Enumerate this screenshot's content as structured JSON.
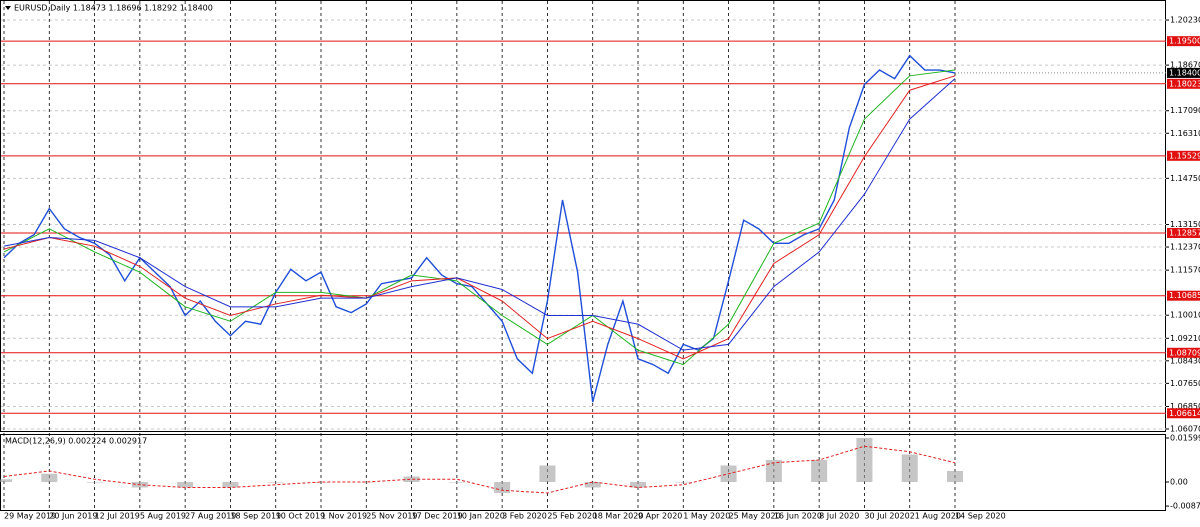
{
  "chart_data": [
    {
      "type": "price",
      "title": "EURUSD,Daily  1.18473 1.18696 1.18292 1.18400",
      "categories": [
        "29 May 2019",
        "20 Jun 2019",
        "12 Jul 2019",
        "5 Aug 2019",
        "27 Aug 2019",
        "18 Sep 2019",
        "10 Oct 2019",
        "1 Nov 2019",
        "25 Nov 2019",
        "17 Dec 2019",
        "10 Jan 2020",
        "3 Feb 2020",
        "25 Feb 2020",
        "18 Mar 2020",
        "9 Apr 2020",
        "1 May 2020",
        "25 May 2020",
        "16 Jun 2020",
        "8 Jul 2020",
        "30 Jul 2020",
        "21 Aug 2020",
        "14 Sep 2020"
      ],
      "price": {
        "color": "#1f4fd8",
        "values": [
          1.12,
          1.125,
          1.128,
          1.137,
          1.13,
          1.127,
          1.125,
          1.121,
          1.112,
          1.12,
          1.115,
          1.11,
          1.1,
          1.105,
          1.098,
          1.093,
          1.098,
          1.097,
          1.108,
          1.116,
          1.112,
          1.115,
          1.103,
          1.101,
          1.104,
          1.111,
          1.112,
          1.113,
          1.12,
          1.114,
          1.111,
          1.11,
          1.104,
          1.098,
          1.085,
          1.08,
          1.105,
          1.14,
          1.115,
          1.07,
          1.09,
          1.105,
          1.085,
          1.083,
          1.08,
          1.09,
          1.088,
          1.092,
          1.112,
          1.133,
          1.13,
          1.125,
          1.125,
          1.128,
          1.13,
          1.14,
          1.165,
          1.18,
          1.185,
          1.182,
          1.19,
          1.185,
          1.185,
          1.184
        ]
      },
      "series": [
        {
          "color": "#22b422",
          "values": [
            1.122,
            1.13,
            1.122,
            1.115,
            1.103,
            1.098,
            1.108,
            1.108,
            1.106,
            1.114,
            1.112,
            1.1,
            1.09,
            1.1,
            1.088,
            1.083,
            1.097,
            1.125,
            1.132,
            1.168,
            1.183,
            1.185
          ]
        },
        {
          "color": "#e02020",
          "values": [
            1.123,
            1.127,
            1.124,
            1.117,
            1.106,
            1.1,
            1.104,
            1.107,
            1.106,
            1.112,
            1.113,
            1.105,
            1.092,
            1.098,
            1.092,
            1.085,
            1.092,
            1.118,
            1.128,
            1.155,
            1.178,
            1.183
          ]
        },
        {
          "color": "#1f2fd0",
          "values": [
            1.124,
            1.127,
            1.126,
            1.12,
            1.11,
            1.103,
            1.103,
            1.106,
            1.106,
            1.11,
            1.113,
            1.109,
            1.1,
            1.1,
            1.097,
            1.088,
            1.09,
            1.11,
            1.122,
            1.142,
            1.168,
            1.182
          ]
        }
      ],
      "levels": [
        {
          "value": 1.195,
          "label": "1.19500"
        },
        {
          "value": 1.18023,
          "label": "1.18023"
        },
        {
          "value": 1.15529,
          "label": "1.15529"
        },
        {
          "value": 1.12857,
          "label": "1.12857"
        },
        {
          "value": 1.10685,
          "label": "1.10685"
        },
        {
          "value": 1.08709,
          "label": "1.08709"
        },
        {
          "value": 1.06614,
          "label": "1.06614"
        }
      ],
      "level_color": "#e01010",
      "current": {
        "value": 1.184,
        "label": "1.18400"
      },
      "ylim": [
        1.06,
        1.2089
      ],
      "yticks": [
        {
          "value": 1.2023,
          "label": "1.20230"
        },
        {
          "value": 1.1867,
          "label": "1.18670"
        },
        {
          "value": 1.1709,
          "label": "1.17090"
        },
        {
          "value": 1.1631,
          "label": "1.16310"
        },
        {
          "value": 1.1475,
          "label": "1.14750"
        },
        {
          "value": 1.1315,
          "label": "1.13150"
        },
        {
          "value": 1.1237,
          "label": "1.12370"
        },
        {
          "value": 1.1157,
          "label": "1.11570"
        },
        {
          "value": 1.1001,
          "label": "1.10010"
        },
        {
          "value": 1.0921,
          "label": "1.09210"
        },
        {
          "value": 1.0843,
          "label": "1.08430"
        },
        {
          "value": 1.0765,
          "label": "1.07650"
        },
        {
          "value": 1.0685,
          "label": "1.06850"
        },
        {
          "value": 1.0607,
          "label": "1.06070"
        }
      ],
      "grid": true
    },
    {
      "type": "macd",
      "title": "MACD(12,26,9) 0.002224 0.002917",
      "macd": {
        "color": "#a0a0a0",
        "values": [
          0.001,
          0.003,
          0.0,
          -0.002,
          -0.002,
          -0.002,
          0.0,
          0.0,
          0.0,
          0.002,
          0.0,
          -0.004,
          0.006,
          -0.002,
          -0.002,
          0.0,
          0.006,
          0.008,
          0.008,
          0.016,
          0.01,
          0.004
        ]
      },
      "signal": {
        "color": "#e02020",
        "values": [
          0.002,
          0.004,
          0.001,
          -0.001,
          -0.002,
          -0.002,
          -0.001,
          0.0,
          0.0,
          0.001,
          0.001,
          -0.003,
          -0.004,
          0.0,
          -0.002,
          -0.001,
          0.003,
          0.007,
          0.008,
          0.013,
          0.011,
          0.007
        ]
      },
      "ylim": [
        -0.01018,
        0.01708
      ],
      "yticks": [
        0.015993,
        {
          "value": 0,
          "label": "0.00"
        },
        -0.008748
      ]
    }
  ]
}
